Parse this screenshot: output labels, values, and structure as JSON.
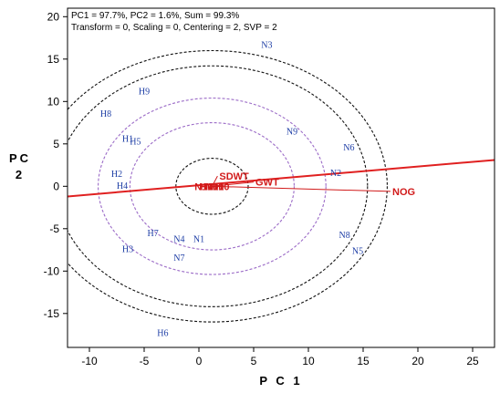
{
  "chart_data": {
    "type": "scatter",
    "title": "",
    "xlabel": "P C 1",
    "ylabel": "P C 2",
    "xlim": [
      -12,
      27
    ],
    "ylim": [
      -19,
      21
    ],
    "xticks": [
      -10,
      -5,
      0,
      5,
      10,
      15,
      20,
      25
    ],
    "yticks": [
      -15,
      -10,
      -5,
      0,
      5,
      10,
      15,
      20
    ],
    "grid": false,
    "stats": [
      "PC1 = 97.7%, PC2 = 1.6%, Sum = 99.3%",
      "Transform = 0, Scaling = 0, Centering = 2, SVP = 2"
    ],
    "genotypes": [
      {
        "label": "N3",
        "x": 6.2,
        "y": 16.7
      },
      {
        "label": "H9",
        "x": -5.0,
        "y": 11.2
      },
      {
        "label": "H8",
        "x": -8.5,
        "y": 8.6
      },
      {
        "label": "N9",
        "x": 8.5,
        "y": 6.5
      },
      {
        "label": "H1",
        "x": -6.5,
        "y": 5.6
      },
      {
        "label": "H5",
        "x": -5.8,
        "y": 5.3
      },
      {
        "label": "N6",
        "x": 13.7,
        "y": 4.6
      },
      {
        "label": "H2",
        "x": -7.5,
        "y": 1.5
      },
      {
        "label": "N2",
        "x": 12.5,
        "y": 1.6
      },
      {
        "label": "H4",
        "x": -7.0,
        "y": 0.1
      },
      {
        "label": "H7",
        "x": -4.2,
        "y": -5.5
      },
      {
        "label": "N4",
        "x": -1.8,
        "y": -6.2
      },
      {
        "label": "N1",
        "x": 0.0,
        "y": -6.2
      },
      {
        "label": "H3",
        "x": -6.5,
        "y": -7.4
      },
      {
        "label": "N7",
        "x": -1.8,
        "y": -8.4
      },
      {
        "label": "N8",
        "x": 13.3,
        "y": -5.7
      },
      {
        "label": "N5",
        "x": 14.5,
        "y": -7.6
      },
      {
        "label": "H6",
        "x": -3.3,
        "y": -17.3
      }
    ],
    "traits": [
      {
        "label": "SDWT",
        "x": 1.7,
        "y": 1.2
      },
      {
        "label": "GWT",
        "x": 5.0,
        "y": 0.5
      },
      {
        "label": "NOG",
        "x": 17.5,
        "y": -0.6
      }
    ],
    "center_labels": [
      "N10",
      "H10"
    ],
    "center": {
      "x": 1.2,
      "y": 0.0
    },
    "circle_radii": [
      3.3,
      7.5,
      10.4,
      14.2,
      16.0
    ],
    "circle_styles": [
      "dotted-black",
      "dotted-purple",
      "dotted-purple",
      "dotted-black",
      "dotted-black"
    ],
    "axis_line": {
      "from": [
        -12,
        -1.2
      ],
      "to": [
        27,
        3.1
      ]
    },
    "colors": {
      "genotype": "#1f3fa6",
      "trait": "#d11a1a",
      "circle_black": "#111111",
      "circle_purple": "#9b6bc7",
      "axis_line": "#e02020"
    }
  }
}
